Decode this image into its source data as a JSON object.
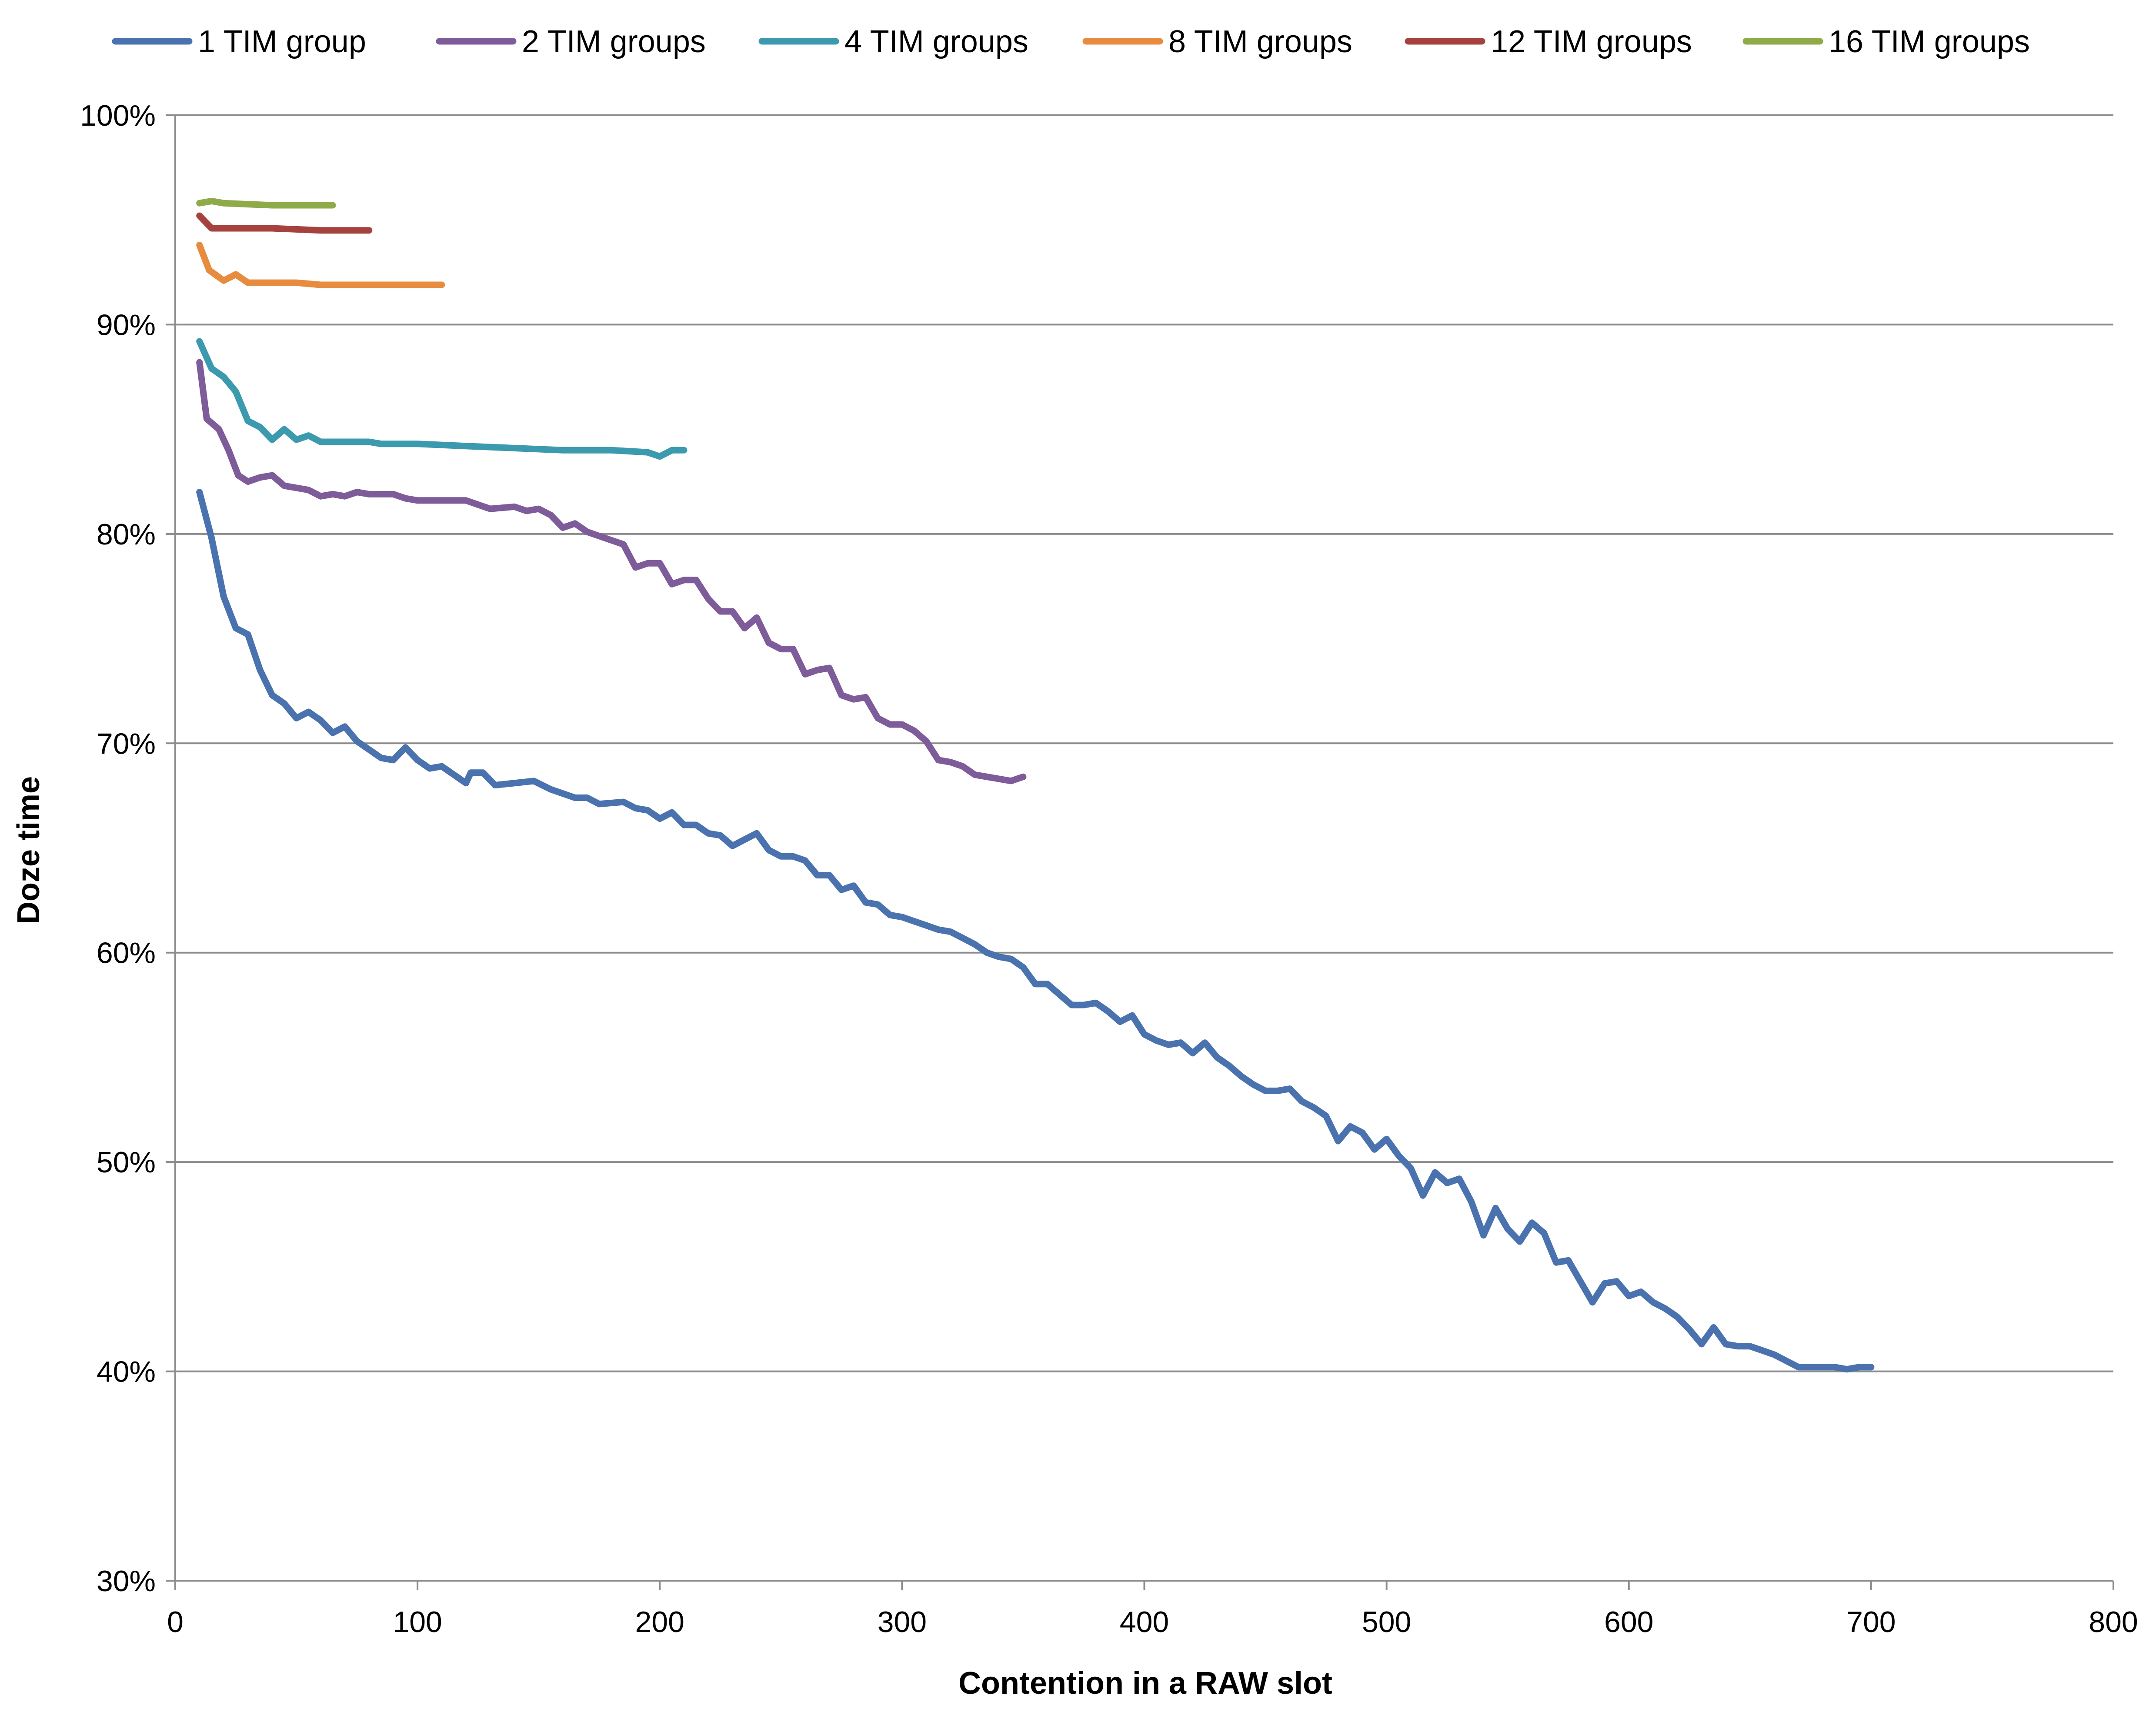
{
  "chart_data": {
    "type": "line",
    "title": "",
    "xlabel": "Contention in a RAW slot",
    "ylabel": "Doze time",
    "xlim": [
      0,
      800
    ],
    "ylim": [
      30,
      100
    ],
    "x_ticks": [
      "0",
      "100",
      "200",
      "300",
      "400",
      "500",
      "600",
      "700",
      "800"
    ],
    "y_ticks": [
      "30%",
      "40%",
      "50%",
      "60%",
      "70%",
      "80%",
      "90%",
      "100%"
    ],
    "grid": "horizontal",
    "legend_position": "top",
    "series": [
      {
        "name": "1 TIM group",
        "color": "#4A72AE",
        "points": [
          [
            10,
            82.0
          ],
          [
            15,
            79.8
          ],
          [
            20,
            77.0
          ],
          [
            25,
            75.5
          ],
          [
            30,
            75.2
          ],
          [
            35,
            73.5
          ],
          [
            40,
            72.3
          ],
          [
            45,
            71.9
          ],
          [
            50,
            71.2
          ],
          [
            55,
            71.5
          ],
          [
            60,
            71.1
          ],
          [
            65,
            70.5
          ],
          [
            70,
            70.8
          ],
          [
            75,
            70.1
          ],
          [
            80,
            69.7
          ],
          [
            85,
            69.3
          ],
          [
            90,
            69.2
          ],
          [
            95,
            69.8
          ],
          [
            100,
            69.2
          ],
          [
            105,
            68.8
          ],
          [
            110,
            68.9
          ],
          [
            115,
            68.5
          ],
          [
            120,
            68.1
          ],
          [
            122,
            68.6
          ],
          [
            127,
            68.6
          ],
          [
            132,
            68.0
          ],
          [
            140,
            68.1
          ],
          [
            148,
            68.2
          ],
          [
            155,
            67.8
          ],
          [
            165,
            67.4
          ],
          [
            170,
            67.4
          ],
          [
            175,
            67.1
          ],
          [
            185,
            67.2
          ],
          [
            190,
            66.9
          ],
          [
            195,
            66.8
          ],
          [
            200,
            66.4
          ],
          [
            205,
            66.7
          ],
          [
            210,
            66.1
          ],
          [
            215,
            66.1
          ],
          [
            220,
            65.7
          ],
          [
            225,
            65.6
          ],
          [
            230,
            65.1
          ],
          [
            235,
            65.4
          ],
          [
            240,
            65.7
          ],
          [
            245,
            64.9
          ],
          [
            250,
            64.6
          ],
          [
            255,
            64.6
          ],
          [
            260,
            64.4
          ],
          [
            265,
            63.7
          ],
          [
            270,
            63.7
          ],
          [
            275,
            63.0
          ],
          [
            280,
            63.2
          ],
          [
            285,
            62.4
          ],
          [
            290,
            62.3
          ],
          [
            295,
            61.8
          ],
          [
            300,
            61.7
          ],
          [
            305,
            61.5
          ],
          [
            310,
            61.3
          ],
          [
            315,
            61.1
          ],
          [
            320,
            61.0
          ],
          [
            325,
            60.7
          ],
          [
            330,
            60.4
          ],
          [
            335,
            60.0
          ],
          [
            340,
            59.8
          ],
          [
            345,
            59.7
          ],
          [
            350,
            59.3
          ],
          [
            355,
            58.5
          ],
          [
            360,
            58.5
          ],
          [
            365,
            58.0
          ],
          [
            370,
            57.5
          ],
          [
            375,
            57.5
          ],
          [
            380,
            57.6
          ],
          [
            385,
            57.2
          ],
          [
            390,
            56.7
          ],
          [
            395,
            57.0
          ],
          [
            400,
            56.1
          ],
          [
            405,
            55.8
          ],
          [
            410,
            55.6
          ],
          [
            415,
            55.7
          ],
          [
            420,
            55.2
          ],
          [
            425,
            55.7
          ],
          [
            430,
            55.0
          ],
          [
            435,
            54.6
          ],
          [
            440,
            54.1
          ],
          [
            445,
            53.7
          ],
          [
            450,
            53.4
          ],
          [
            455,
            53.4
          ],
          [
            460,
            53.5
          ],
          [
            465,
            52.9
          ],
          [
            470,
            52.6
          ],
          [
            475,
            52.2
          ],
          [
            480,
            51.0
          ],
          [
            485,
            51.7
          ],
          [
            490,
            51.4
          ],
          [
            495,
            50.6
          ],
          [
            500,
            51.1
          ],
          [
            505,
            50.3
          ],
          [
            510,
            49.7
          ],
          [
            515,
            48.4
          ],
          [
            520,
            49.5
          ],
          [
            525,
            49.0
          ],
          [
            530,
            49.2
          ],
          [
            535,
            48.1
          ],
          [
            540,
            46.5
          ],
          [
            545,
            47.8
          ],
          [
            550,
            46.8
          ],
          [
            555,
            46.2
          ],
          [
            560,
            47.1
          ],
          [
            565,
            46.6
          ],
          [
            570,
            45.2
          ],
          [
            575,
            45.3
          ],
          [
            580,
            44.3
          ],
          [
            585,
            43.3
          ],
          [
            590,
            44.2
          ],
          [
            595,
            44.3
          ],
          [
            600,
            43.6
          ],
          [
            605,
            43.8
          ],
          [
            610,
            43.3
          ],
          [
            615,
            43.0
          ],
          [
            620,
            42.6
          ],
          [
            625,
            42.0
          ],
          [
            630,
            41.3
          ],
          [
            635,
            42.1
          ],
          [
            640,
            41.3
          ],
          [
            645,
            41.2
          ],
          [
            650,
            41.2
          ],
          [
            655,
            41.0
          ],
          [
            660,
            40.8
          ],
          [
            665,
            40.5
          ],
          [
            670,
            40.2
          ],
          [
            675,
            40.2
          ],
          [
            680,
            40.2
          ],
          [
            685,
            40.2
          ],
          [
            690,
            40.1
          ],
          [
            695,
            40.2
          ],
          [
            700,
            40.2
          ]
        ]
      },
      {
        "name": "2 TIM groups",
        "color": "#7D5C99",
        "points": [
          [
            10,
            88.2
          ],
          [
            13,
            85.5
          ],
          [
            18,
            85.0
          ],
          [
            22,
            84.0
          ],
          [
            26,
            82.8
          ],
          [
            30,
            82.5
          ],
          [
            35,
            82.7
          ],
          [
            40,
            82.8
          ],
          [
            45,
            82.3
          ],
          [
            50,
            82.2
          ],
          [
            55,
            82.1
          ],
          [
            60,
            81.8
          ],
          [
            65,
            81.9
          ],
          [
            70,
            81.8
          ],
          [
            75,
            82.0
          ],
          [
            80,
            81.9
          ],
          [
            85,
            81.9
          ],
          [
            90,
            81.9
          ],
          [
            95,
            81.7
          ],
          [
            100,
            81.6
          ],
          [
            110,
            81.6
          ],
          [
            120,
            81.6
          ],
          [
            125,
            81.4
          ],
          [
            130,
            81.2
          ],
          [
            140,
            81.3
          ],
          [
            145,
            81.1
          ],
          [
            150,
            81.2
          ],
          [
            155,
            80.9
          ],
          [
            160,
            80.3
          ],
          [
            165,
            80.5
          ],
          [
            170,
            80.1
          ],
          [
            175,
            79.9
          ],
          [
            180,
            79.7
          ],
          [
            185,
            79.5
          ],
          [
            190,
            78.4
          ],
          [
            195,
            78.6
          ],
          [
            200,
            78.6
          ],
          [
            205,
            77.6
          ],
          [
            210,
            77.8
          ],
          [
            215,
            77.8
          ],
          [
            220,
            76.9
          ],
          [
            225,
            76.3
          ],
          [
            230,
            76.3
          ],
          [
            235,
            75.5
          ],
          [
            240,
            76.0
          ],
          [
            245,
            74.8
          ],
          [
            250,
            74.5
          ],
          [
            255,
            74.5
          ],
          [
            260,
            73.3
          ],
          [
            265,
            73.5
          ],
          [
            270,
            73.6
          ],
          [
            275,
            72.3
          ],
          [
            280,
            72.1
          ],
          [
            285,
            72.2
          ],
          [
            290,
            71.2
          ],
          [
            295,
            70.9
          ],
          [
            300,
            70.9
          ],
          [
            305,
            70.6
          ],
          [
            310,
            70.1
          ],
          [
            315,
            69.2
          ],
          [
            320,
            69.1
          ],
          [
            325,
            68.9
          ],
          [
            330,
            68.5
          ],
          [
            335,
            68.4
          ],
          [
            340,
            68.3
          ],
          [
            345,
            68.2
          ],
          [
            350,
            68.4
          ]
        ]
      },
      {
        "name": "4 TIM groups",
        "color": "#3C9AAE",
        "points": [
          [
            10,
            89.2
          ],
          [
            15,
            87.9
          ],
          [
            20,
            87.5
          ],
          [
            25,
            86.8
          ],
          [
            30,
            85.4
          ],
          [
            35,
            85.1
          ],
          [
            40,
            84.5
          ],
          [
            45,
            85.0
          ],
          [
            50,
            84.5
          ],
          [
            55,
            84.7
          ],
          [
            60,
            84.4
          ],
          [
            65,
            84.4
          ],
          [
            70,
            84.4
          ],
          [
            75,
            84.4
          ],
          [
            80,
            84.4
          ],
          [
            85,
            84.3
          ],
          [
            100,
            84.3
          ],
          [
            120,
            84.2
          ],
          [
            140,
            84.1
          ],
          [
            160,
            84.0
          ],
          [
            180,
            84.0
          ],
          [
            195,
            83.9
          ],
          [
            200,
            83.7
          ],
          [
            205,
            84.0
          ],
          [
            210,
            84.0
          ]
        ]
      },
      {
        "name": "8 TIM groups",
        "color": "#E78B3F",
        "points": [
          [
            10,
            93.8
          ],
          [
            14,
            92.6
          ],
          [
            20,
            92.1
          ],
          [
            25,
            92.4
          ],
          [
            30,
            92.0
          ],
          [
            40,
            92.0
          ],
          [
            50,
            92.0
          ],
          [
            60,
            91.9
          ],
          [
            80,
            91.9
          ],
          [
            100,
            91.9
          ],
          [
            110,
            91.9
          ]
        ]
      },
      {
        "name": "12 TIM groups",
        "color": "#A5423E",
        "points": [
          [
            10,
            95.2
          ],
          [
            15,
            94.6
          ],
          [
            20,
            94.6
          ],
          [
            40,
            94.6
          ],
          [
            60,
            94.5
          ],
          [
            80,
            94.5
          ]
        ]
      },
      {
        "name": "16 TIM groups",
        "color": "#8FAA48",
        "points": [
          [
            10,
            95.8
          ],
          [
            15,
            95.9
          ],
          [
            20,
            95.8
          ],
          [
            40,
            95.7
          ],
          [
            65,
            95.7
          ]
        ]
      }
    ]
  }
}
